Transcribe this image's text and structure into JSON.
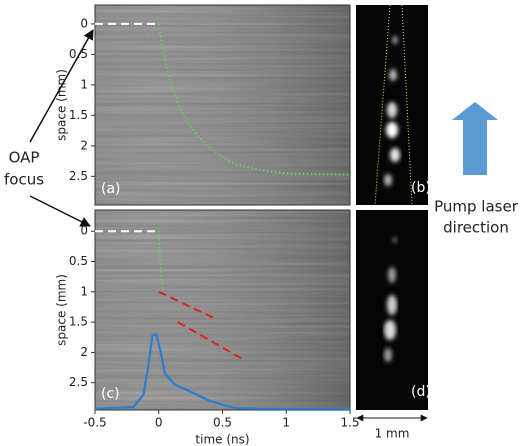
{
  "chart_data": [
    {
      "type": "line",
      "panel_label": "(a)",
      "y_label": "space (mm)",
      "xlim": [
        -0.5,
        1.5
      ],
      "ylim": [
        2.97,
        -0.31
      ],
      "yticks": [
        0,
        0.5,
        1,
        1.5,
        2,
        2.5
      ],
      "series": [
        {
          "color": "#ffffff",
          "dash": "dashed",
          "x": [
            -0.5,
            0
          ],
          "values": [
            0,
            0
          ]
        },
        {
          "color": "#5fd35f",
          "dash": "dotted",
          "x": [
            0,
            0.03,
            0.07,
            0.1,
            0.16,
            0.22,
            0.3,
            0.38,
            0.5,
            0.6,
            0.8,
            1.0,
            1.5
          ],
          "values": [
            0,
            0.4,
            0.8,
            1.0,
            1.35,
            1.6,
            1.82,
            2.0,
            2.18,
            2.3,
            2.4,
            2.45,
            2.47
          ]
        }
      ]
    },
    {
      "type": "line",
      "panel_label": "(c)",
      "y_label": "space (mm)",
      "x_label": "time (ns)",
      "xlim": [
        -0.5,
        1.5
      ],
      "ylim": [
        2.95,
        -0.35
      ],
      "yticks": [
        0,
        0.5,
        1,
        1.5,
        2,
        2.5
      ],
      "xticks": [
        -0.5,
        0,
        0.5,
        1,
        1.5
      ],
      "series": [
        {
          "color": "#ffffff",
          "dash": "dashed",
          "x": [
            -0.5,
            0
          ],
          "values": [
            0,
            0
          ]
        },
        {
          "color": "#5fd35f",
          "dash": "dotted",
          "x": [
            0,
            0.01,
            0.02,
            0.03
          ],
          "values": [
            0,
            0.4,
            0.75,
            0.97
          ]
        },
        {
          "color": "#e02020",
          "dash": "dashed",
          "x": [
            0,
            0.45
          ],
          "values": [
            1.0,
            1.45
          ]
        },
        {
          "color": "#e02020",
          "dash": "dashed",
          "x": [
            0.15,
            0.65
          ],
          "values": [
            1.5,
            2.1
          ]
        },
        {
          "color": "#2a7fd0",
          "dash": "solid",
          "x": [
            -0.5,
            -0.2,
            -0.12,
            -0.08,
            -0.05,
            -0.02,
            0,
            0.05,
            0.12,
            0.2,
            0.4,
            0.6,
            0.8,
            1.5
          ],
          "values": [
            2.93,
            2.9,
            2.7,
            2.2,
            1.72,
            1.7,
            1.85,
            2.35,
            2.52,
            2.6,
            2.8,
            2.92,
            2.93,
            2.93
          ]
        }
      ]
    }
  ],
  "side_images": [
    "(b)",
    "(d)"
  ],
  "scale_bar": "1 mm",
  "oap_focus": [
    "OAP",
    "focus"
  ],
  "pump_laser": [
    "Pump laser",
    "direction"
  ]
}
